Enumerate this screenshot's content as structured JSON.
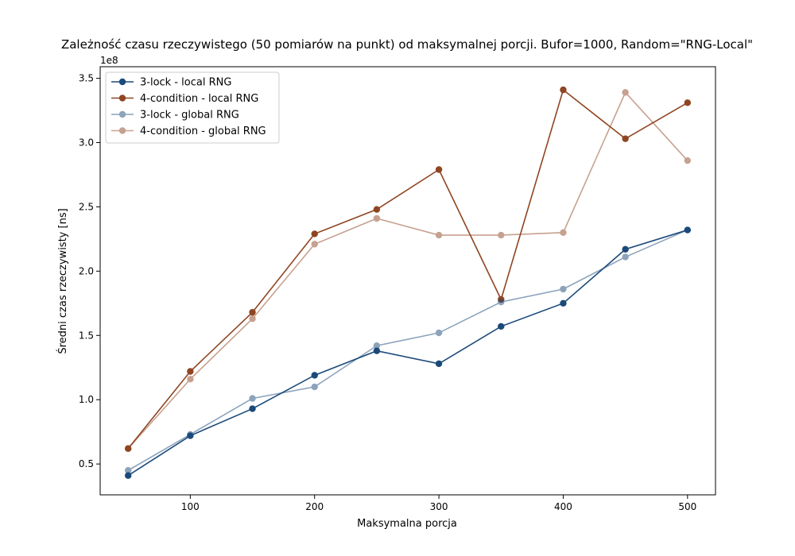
{
  "chart_data": {
    "type": "line",
    "title": "Zależność czasu rzeczywistego (50 pomiarów na punkt) od maksymalnej porcji. Bufor=1000, Random=\"RNG-Local\"",
    "xlabel": "Maksymalna porcja",
    "ylabel": "Średni czas rzeczywisty [ns]",
    "y_offset_label": "1e8",
    "xlim": [
      27.5,
      522.5
    ],
    "ylim": [
      0.26,
      3.59
    ],
    "x_ticks": [
      100,
      200,
      300,
      400,
      500
    ],
    "x_tick_labels": [
      "100",
      "200",
      "300",
      "400",
      "500"
    ],
    "y_ticks": [
      0.5,
      1.0,
      1.5,
      2.0,
      2.5,
      3.0,
      3.5
    ],
    "y_tick_labels": [
      "0.5",
      "1.0",
      "1.5",
      "2.0",
      "2.5",
      "3.0",
      "3.5"
    ],
    "grid": false,
    "legend_position": "top-left",
    "x": [
      50,
      100,
      150,
      200,
      250,
      300,
      350,
      400,
      450,
      500
    ],
    "series": [
      {
        "name": "3-lock - local RNG",
        "color": "#1b4a7a",
        "opacity": 1.0,
        "values": [
          0.41,
          0.72,
          0.93,
          1.19,
          1.38,
          1.28,
          1.57,
          1.75,
          2.17,
          2.32
        ]
      },
      {
        "name": "4-condition - local RNG",
        "color": "#8f4522",
        "opacity": 1.0,
        "values": [
          0.62,
          1.22,
          1.68,
          2.29,
          2.48,
          2.79,
          1.78,
          3.41,
          3.03,
          3.31
        ]
      },
      {
        "name": "3-lock - global RNG",
        "color": "#1b4a7a",
        "opacity": 0.5,
        "values": [
          0.45,
          0.73,
          1.01,
          1.1,
          1.42,
          1.52,
          1.76,
          1.86,
          2.11,
          2.32
        ]
      },
      {
        "name": "4-condition - global RNG",
        "color": "#8f4522",
        "opacity": 0.5,
        "values": [
          0.62,
          1.16,
          1.63,
          2.21,
          2.41,
          2.28,
          2.28,
          2.3,
          3.39,
          2.86
        ]
      }
    ]
  }
}
